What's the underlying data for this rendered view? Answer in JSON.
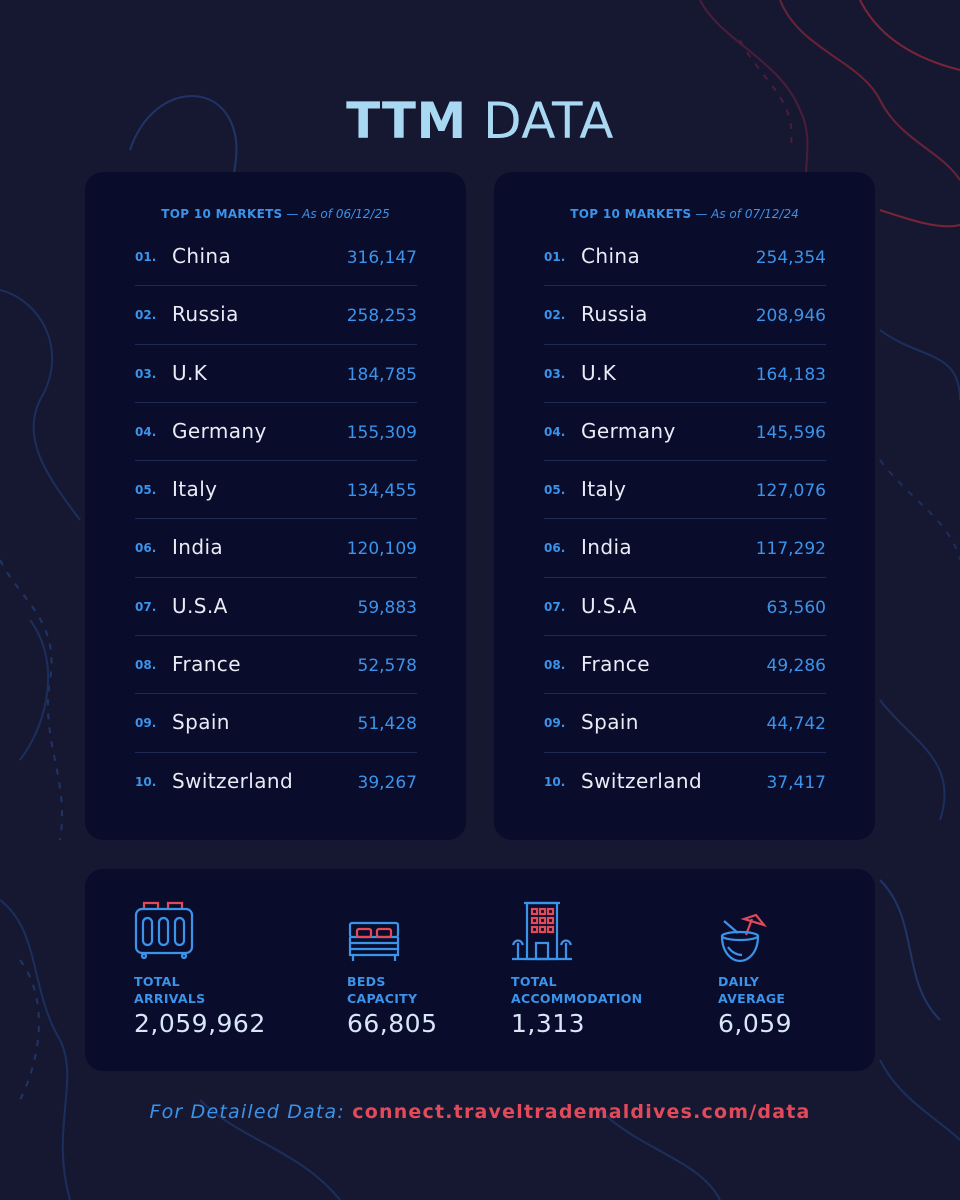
{
  "title": {
    "bold": "TTM",
    "light": "DATA"
  },
  "markets": [
    {
      "label": "TOP 10 MARKETS",
      "separator": "—",
      "date_note": "As of 06/12/25",
      "rows": [
        {
          "rank": "01.",
          "country": "China",
          "count": "316,147"
        },
        {
          "rank": "02.",
          "country": "Russia",
          "count": "258,253"
        },
        {
          "rank": "03.",
          "country": "U.K",
          "count": "184,785"
        },
        {
          "rank": "04.",
          "country": "Germany",
          "count": "155,309"
        },
        {
          "rank": "05.",
          "country": "Italy",
          "count": "134,455"
        },
        {
          "rank": "06.",
          "country": "India",
          "count": "120,109"
        },
        {
          "rank": "07.",
          "country": "U.S.A",
          "count": "59,883"
        },
        {
          "rank": "08.",
          "country": "France",
          "count": "52,578"
        },
        {
          "rank": "09.",
          "country": "Spain",
          "count": "51,428"
        },
        {
          "rank": "10.",
          "country": "Switzerland",
          "count": "39,267"
        }
      ]
    },
    {
      "label": "TOP 10 MARKETS",
      "separator": "—",
      "date_note": "As of 07/12/24",
      "rows": [
        {
          "rank": "01.",
          "country": "China",
          "count": "254,354"
        },
        {
          "rank": "02.",
          "country": "Russia",
          "count": "208,946"
        },
        {
          "rank": "03.",
          "country": "U.K",
          "count": "164,183"
        },
        {
          "rank": "04.",
          "country": "Germany",
          "count": "145,596"
        },
        {
          "rank": "05.",
          "country": "Italy",
          "count": "127,076"
        },
        {
          "rank": "06.",
          "country": "India",
          "count": "117,292"
        },
        {
          "rank": "07.",
          "country": "U.S.A",
          "count": "63,560"
        },
        {
          "rank": "08.",
          "country": "France",
          "count": "49,286"
        },
        {
          "rank": "09.",
          "country": "Spain",
          "count": "44,742"
        },
        {
          "rank": "10.",
          "country": "Switzerland",
          "count": "37,417"
        }
      ]
    }
  ],
  "stats": [
    {
      "icon": "luggage-icon",
      "label": "TOTAL\nARRIVALS",
      "value": "2,059,962"
    },
    {
      "icon": "bed-icon",
      "label": "BEDS\nCAPACITY",
      "value": "66,805"
    },
    {
      "icon": "hotel-building-icon",
      "label": "TOTAL\nACCOMMODATION",
      "value": "1,313"
    },
    {
      "icon": "coconut-drink-icon",
      "label": "DAILY\nAVERAGE",
      "value": "6,059"
    }
  ],
  "footer": {
    "label": "For Detailed Data:",
    "link": "connect.traveltrademaldives.com/data"
  },
  "colors": {
    "background": "#161832",
    "panel": "#090c2b",
    "accent_blue": "#3b93ea",
    "title_blue": "#a9d9f2",
    "accent_red": "#e24a5a"
  }
}
